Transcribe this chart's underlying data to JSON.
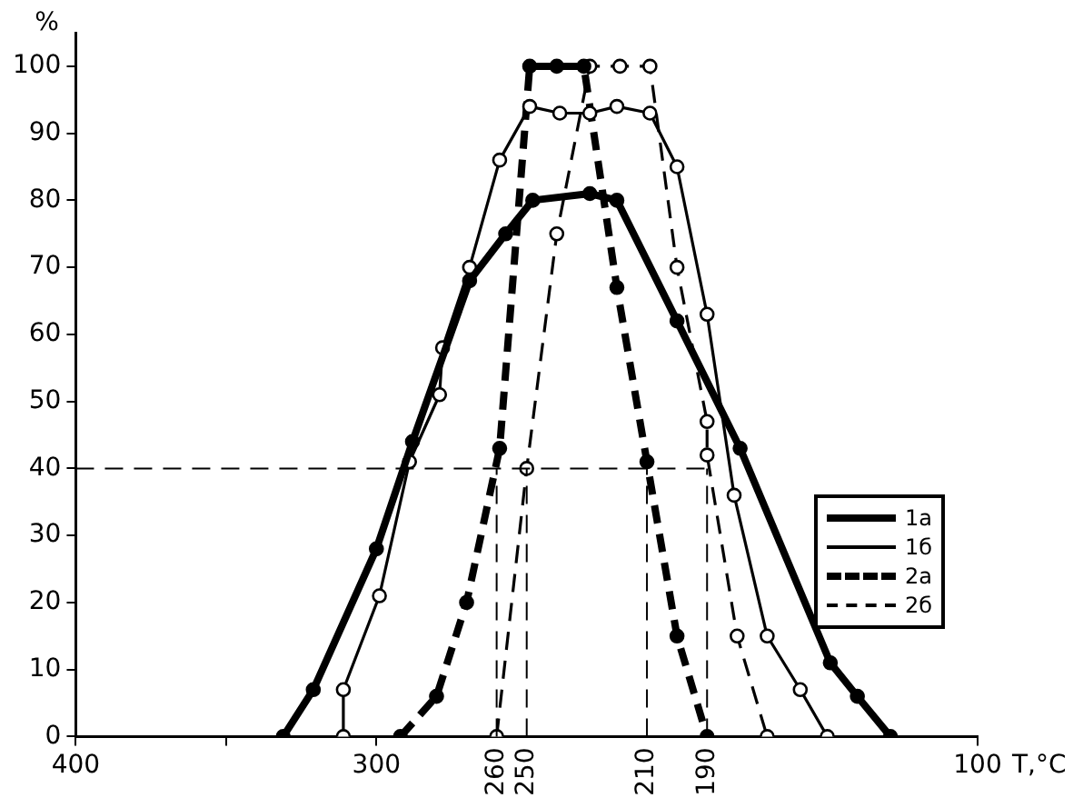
{
  "chart_data": {
    "type": "line",
    "xlabel": "T,°C",
    "ylabel": "%",
    "xlim": [
      400,
      100
    ],
    "xticks": [
      400,
      {
        "value": 350,
        "label": null
      },
      300,
      100
    ],
    "ylim": [
      0,
      105
    ],
    "yticks": [
      0,
      10,
      20,
      30,
      40,
      50,
      60,
      70,
      80,
      90,
      100
    ],
    "grid": false,
    "legend": "right",
    "marker": "circle",
    "ref_lines": [
      {
        "axis": "y",
        "value": 40,
        "label": null,
        "line_style": "dashed"
      },
      {
        "axis": "x",
        "value": 260,
        "label": "260",
        "line_style": "dashed"
      },
      {
        "axis": "x",
        "value": 250,
        "label": "250",
        "line_style": "dashed"
      },
      {
        "axis": "x",
        "value": 210,
        "label": "210",
        "line_style": "dashed"
      },
      {
        "axis": "x",
        "value": 190,
        "label": "190",
        "line_style": "dashed"
      }
    ],
    "series": [
      {
        "name": "1а",
        "color": "#000000",
        "line_style": "solid",
        "x": [
          331,
          321,
          300,
          288,
          269,
          257,
          248,
          229,
          220,
          200,
          179,
          149,
          140,
          129
        ],
        "values": [
          0,
          7,
          28,
          44,
          68,
          75,
          80,
          81,
          80,
          62,
          43,
          11,
          6,
          0
        ]
      },
      {
        "name": "1б",
        "color": "#000000",
        "line_style": "solid",
        "x": [
          311,
          311,
          299,
          289,
          279,
          278,
          269,
          259,
          249,
          239,
          229,
          220,
          209,
          200,
          190,
          181,
          170,
          159,
          150
        ],
        "values": [
          0,
          7,
          21,
          41,
          51,
          58,
          70,
          86,
          94,
          93,
          93,
          94,
          93,
          85,
          63,
          36,
          15,
          7,
          0
        ]
      },
      {
        "name": "2а",
        "color": "#000000",
        "line_style": "dashed",
        "x": [
          292,
          280,
          270,
          259,
          249,
          240,
          231,
          220,
          210,
          200,
          190
        ],
        "values": [
          0,
          6,
          20,
          43,
          100,
          100,
          100,
          67,
          41,
          15,
          0
        ]
      },
      {
        "name": "2б",
        "color": "#000000",
        "line_style": "dashed",
        "x": [
          260,
          250,
          240,
          229,
          219,
          209,
          200,
          190,
          190,
          180,
          170
        ],
        "values": [
          0,
          40,
          75,
          100,
          100,
          100,
          70,
          47,
          42,
          15,
          0
        ]
      }
    ]
  }
}
